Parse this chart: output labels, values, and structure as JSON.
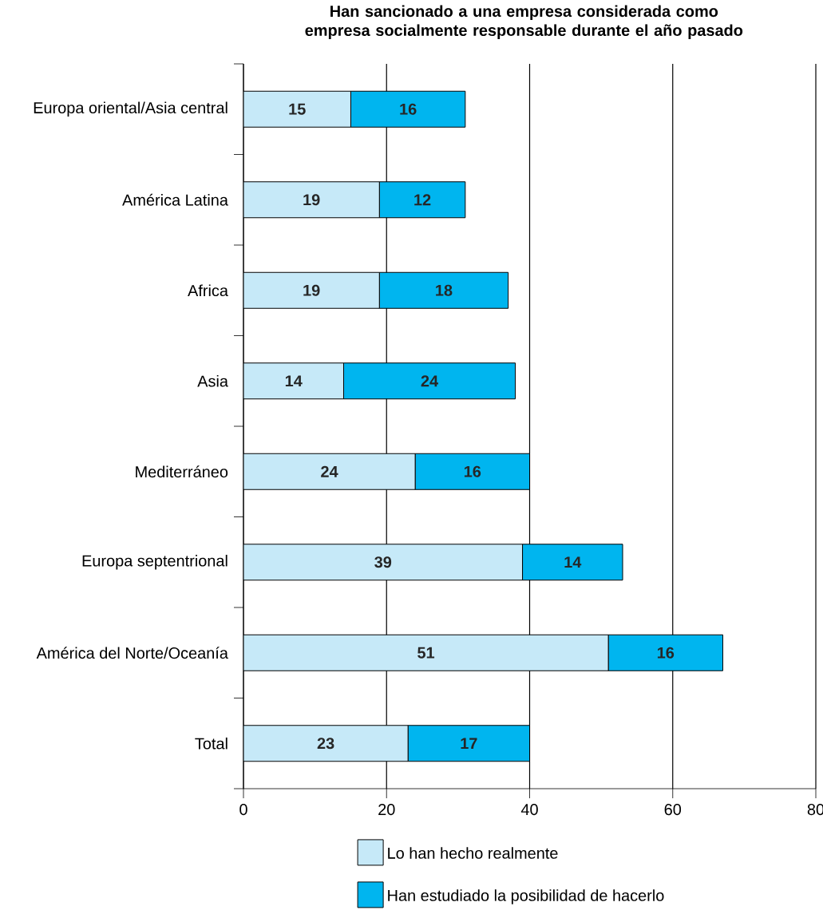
{
  "chart_data": {
    "type": "bar",
    "orientation": "horizontal",
    "stacked": true,
    "title": "Han sancionado a una empresa considerada como empresa socialmente responsable durante el año pasado",
    "categories": [
      "Europa oriental/Asia central",
      "América Latina",
      "Africa",
      "Asia",
      "Mediterráneo",
      "Europa septentrional",
      "América del Norte/Oceanía",
      "Total"
    ],
    "series": [
      {
        "name": "Lo han hecho realmente",
        "color": "#c6e9f8",
        "values": [
          15,
          19,
          19,
          14,
          24,
          39,
          51,
          23
        ]
      },
      {
        "name": "Han estudiado la posibilidad de hacerlo",
        "color": "#00b5ef",
        "values": [
          16,
          12,
          18,
          24,
          16,
          14,
          16,
          17
        ]
      }
    ],
    "xlim": [
      0,
      80
    ],
    "xticks": [
      0,
      20,
      40,
      60,
      80
    ],
    "grid": "x",
    "legend": "bottom",
    "data_labels": true
  }
}
